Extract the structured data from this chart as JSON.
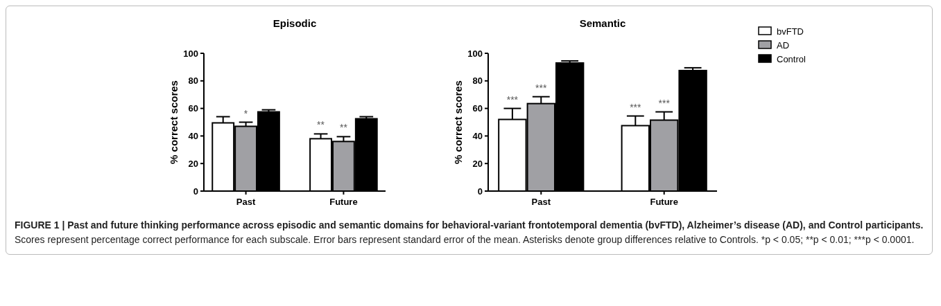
{
  "chart_data": [
    {
      "type": "bar",
      "title": "Episodic",
      "ylabel": "% correct scores",
      "categories": [
        "Past",
        "Future"
      ],
      "ylim": [
        0,
        100
      ],
      "yticks": [
        0,
        20,
        40,
        60,
        80,
        100
      ],
      "series": [
        {
          "color": "#ffffff",
          "values": [
            49.5,
            38
          ],
          "errors": [
            4.5,
            3.5
          ],
          "value_labels": [
            null,
            "**"
          ]
        },
        {
          "color": "#a0a0a4",
          "values": [
            47,
            36
          ],
          "errors": [
            3,
            3.5
          ],
          "value_labels": [
            "*",
            "**"
          ]
        },
        {
          "color": "#000000",
          "values": [
            57.5,
            52.5
          ],
          "errors": [
            1.5,
            1.5
          ]
        }
      ],
      "annotations": [
        "FIGURE 1 | Past and future thinking performance across episodic and semantic domains for behavioral-variant frontotemporal dementia (bvFTD), Alzheimer’s disease (AD), and Control participants.",
        "Scores represent percentage correct performance for each subscale. Error bars represent standard error of the mean. Asterisks denote group differences relative to Controls. *p < 0.05; **p < 0.01; ***p < 0.0001."
      ]
    },
    {
      "type": "bar",
      "title": "Semantic",
      "ylabel": "% correct scores",
      "categories": [
        "Past",
        "Future"
      ],
      "ylim": [
        0,
        100
      ],
      "yticks": [
        0,
        20,
        40,
        60,
        80,
        100
      ],
      "legend": "right",
      "series": [
        {
          "name": "bvFTD",
          "color": "#ffffff",
          "values": [
            52,
            47.5
          ],
          "errors": [
            8,
            7
          ],
          "value_labels": [
            "***",
            "***"
          ]
        },
        {
          "name": "AD",
          "color": "#a0a0a4",
          "values": [
            63.5,
            51.5
          ],
          "errors": [
            5,
            6
          ],
          "value_labels": [
            "***",
            "***"
          ]
        },
        {
          "name": "Control",
          "color": "#000000",
          "values": [
            93,
            87.5
          ],
          "errors": [
            1.5,
            2
          ]
        }
      ]
    }
  ]
}
